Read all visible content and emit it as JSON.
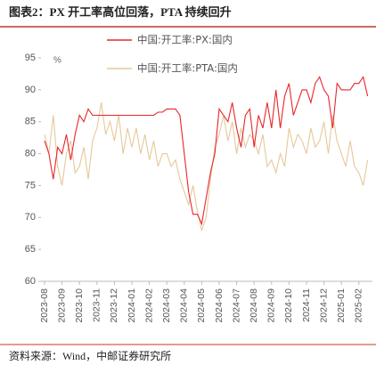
{
  "chart_data": {
    "type": "line",
    "title": "图表2：PX 开工率高位回落，PTA 持续回升",
    "y_unit": "%",
    "source": "资料来源：Wind，中邮证券研究所",
    "categories": [
      "2023-08",
      null,
      null,
      null,
      "2023-09",
      null,
      null,
      null,
      "2023-10",
      null,
      null,
      null,
      "2023-11",
      null,
      null,
      null,
      "2023-12",
      null,
      null,
      null,
      "2024-01",
      null,
      null,
      null,
      "2024-02",
      null,
      null,
      null,
      "2024-03",
      null,
      null,
      null,
      "2024-04",
      null,
      null,
      null,
      "2024-05",
      null,
      null,
      null,
      "2024-06",
      null,
      null,
      null,
      "2024-07",
      null,
      null,
      null,
      "2024-08",
      null,
      null,
      null,
      "2024-09",
      null,
      null,
      null,
      "2024-10",
      null,
      null,
      null,
      "2024-11",
      null,
      null,
      null,
      "2024-12",
      null,
      null,
      null,
      "2025-01",
      null,
      null,
      null,
      "2025-02",
      null,
      null
    ],
    "series": [
      {
        "name": "中国:开工率:PX:国内",
        "color": "#e8262b",
        "values": [
          82,
          80,
          76,
          81,
          80,
          83,
          79,
          83,
          86,
          85,
          87,
          86,
          86,
          86,
          86,
          86,
          86,
          86,
          86,
          86,
          86,
          86,
          86,
          86,
          86,
          86,
          86.5,
          86.5,
          87,
          87,
          87,
          86,
          80,
          74,
          70.5,
          70.5,
          69,
          73,
          77,
          80,
          87,
          86,
          85,
          88,
          84,
          81,
          86,
          87,
          81,
          86,
          84,
          88,
          84,
          90,
          84,
          89,
          91,
          86,
          88,
          90,
          90,
          88,
          91,
          92,
          90,
          89,
          84,
          91,
          90,
          90,
          90,
          91,
          91,
          92,
          89
        ]
      },
      {
        "name": "中国:开工率:PTA:国内",
        "color": "#e6c89a",
        "values": [
          83,
          80,
          86,
          78,
          75,
          80,
          82,
          77,
          78,
          81,
          76,
          82,
          84,
          88,
          83,
          85,
          82,
          86,
          80,
          84,
          81,
          84,
          80,
          83,
          79,
          82,
          78,
          80,
          80,
          78,
          79,
          76,
          74,
          72,
          75,
          71,
          68,
          70,
          76,
          81,
          83,
          86,
          82,
          85,
          80,
          84,
          81,
          83,
          82,
          80,
          83,
          78,
          79,
          77,
          80,
          78,
          84,
          81,
          83,
          82,
          80,
          84,
          81,
          82,
          85,
          80,
          86,
          82,
          80,
          78,
          82,
          78,
          77,
          75,
          79
        ]
      }
    ],
    "ylim": [
      60,
      95
    ],
    "yticks": [
      60,
      65,
      70,
      75,
      80,
      85,
      90,
      95
    ]
  }
}
